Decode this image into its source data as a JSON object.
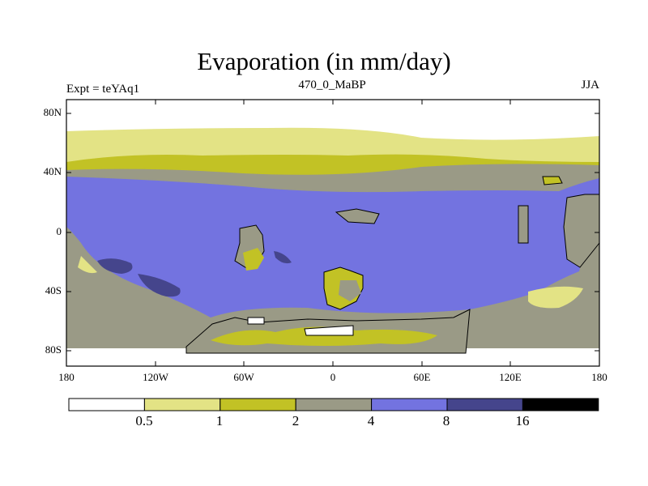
{
  "title": "Evaporation (in mm/day)",
  "left_label": "Expt = teYAq1",
  "center_label": "470_0_MaBP",
  "right_label": "JJA",
  "y_ticks": [
    "80N",
    "40N",
    "0",
    "40S",
    "80S"
  ],
  "x_ticks": [
    "180",
    "120W",
    "60W",
    "0",
    "60E",
    "120E",
    "180"
  ],
  "colorbar": {
    "levels": [
      "0.5",
      "1",
      "2",
      "4",
      "8",
      "16"
    ],
    "colors": [
      "#ffffff",
      "#e3e385",
      "#c2c225",
      "#9a9a86",
      "#7373e0",
      "#45458c",
      "#000000"
    ]
  },
  "chart_data": {
    "type": "heatmap",
    "title": "Evaporation (in mm/day)",
    "units": "mm/day",
    "contour_levels": [
      0.5,
      1,
      2,
      4,
      8,
      16
    ],
    "xlim": [
      -180,
      180
    ],
    "ylim": [
      -90,
      90
    ]
  }
}
